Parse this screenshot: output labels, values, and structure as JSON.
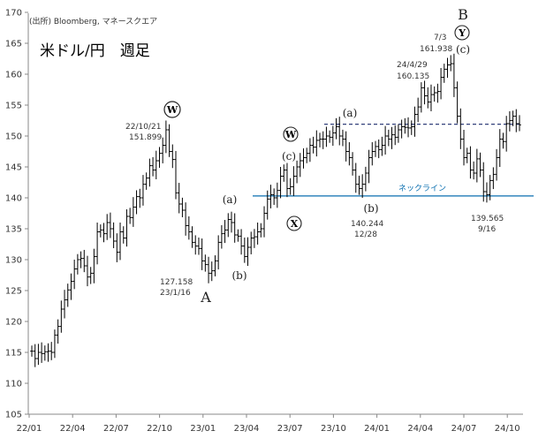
{
  "header": {
    "source": "(出所) Bloomberg, マネースクエア",
    "title": "米ドル/円　週足"
  },
  "chart_data": {
    "type": "ohlc",
    "title": "米ドル/円　週足",
    "ylim": [
      105,
      170
    ],
    "yticks": [
      105,
      110,
      115,
      120,
      125,
      130,
      135,
      140,
      145,
      150,
      155,
      160,
      165,
      170
    ],
    "xticks": [
      "22/01",
      "22/04",
      "22/07",
      "22/10",
      "23/01",
      "23/04",
      "23/07",
      "23/10",
      "24/01",
      "24/04",
      "24/07",
      "24/10"
    ],
    "grid": false,
    "closes": [
      115.2,
      114.0,
      115.0,
      114.8,
      115.1,
      115.2,
      115.0,
      117.8,
      119.2,
      122.0,
      123.5,
      125.1,
      126.5,
      128.5,
      130.0,
      130.2,
      129.0,
      127.2,
      127.8,
      130.5,
      134.5,
      134.8,
      134.2,
      136.0,
      135.0,
      133.0,
      131.2,
      134.5,
      133.5,
      137.0,
      136.8,
      138.5,
      140.2,
      140.0,
      142.2,
      143.2,
      145.2,
      144.5,
      146.0,
      147.2,
      148.5,
      151.0,
      147.5,
      146.2,
      140.8,
      139.0,
      138.0,
      135.5,
      134.5,
      132.8,
      132.2,
      131.8,
      129.8,
      129.2,
      127.8,
      128.2,
      129.8,
      132.8,
      134.2,
      134.8,
      136.5,
      136.0,
      134.0,
      133.8,
      132.2,
      130.5,
      132.0,
      133.5,
      133.7,
      134.5,
      135.0,
      137.5,
      139.8,
      140.5,
      140.0,
      141.2,
      143.5,
      144.5,
      141.5,
      141.8,
      143.5,
      145.0,
      146.0,
      146.5,
      147.2,
      148.5,
      148.2,
      149.3,
      149.5,
      149.5,
      150.0,
      149.8,
      150.5,
      151.5,
      150.0,
      149.5,
      147.5,
      146.5,
      144.5,
      142.2,
      141.5,
      142.2,
      144.0,
      146.5,
      147.5,
      148.3,
      147.8,
      148.5,
      150.0,
      149.5,
      150.2,
      149.8,
      151.0,
      151.5,
      151.4,
      151.3,
      151.5,
      153.5,
      154.7,
      157.8,
      156.5,
      155.5,
      156.7,
      157.0,
      157.2,
      159.5,
      160.8,
      161.5,
      161.7,
      157.8,
      153.2,
      149.5,
      146.5,
      147.2,
      144.5,
      144.0,
      146.3,
      144.5,
      141.0,
      140.5,
      142.8,
      143.8,
      146.5,
      149.5,
      149.1,
      152.0,
      152.5,
      153.2,
      152.0,
      151.8
    ],
    "annotations": [
      {
        "text": "22/10/21",
        "x": "22/10/21"
      },
      {
        "text": "151.899",
        "y": 151.899
      },
      {
        "text": "127.158",
        "y": 127.158
      },
      {
        "text": "23/1/16",
        "x": "23/1/16"
      },
      {
        "text": "7/3",
        "x": "24/7/3"
      },
      {
        "text": "161.938",
        "y": 161.938
      },
      {
        "text": "24/4/29",
        "x": "24/4/29"
      },
      {
        "text": "160.135",
        "y": 160.135
      },
      {
        "text": "140.244",
        "y": 140.244
      },
      {
        "text": "12/28",
        "x": "23/12/28"
      },
      {
        "text": "139.565",
        "y": 139.565
      },
      {
        "text": "9/16",
        "x": "24/9/16"
      },
      {
        "text": "ネックライン",
        "y": 140.3
      }
    ],
    "wave_labels": {
      "W1": "W",
      "W2": "W",
      "X": "X",
      "Y": "Y",
      "A": "A",
      "B": "B",
      "a1": "(a)",
      "b1": "(b)",
      "c1": "(c)",
      "a2": "(a)",
      "b2": "(b)",
      "c2": "(c)"
    },
    "lines": {
      "neckline": {
        "y": 140.3,
        "color": "#0a6fb0"
      },
      "dashed": {
        "y": 151.9,
        "color": "#1a2a6c"
      }
    }
  }
}
